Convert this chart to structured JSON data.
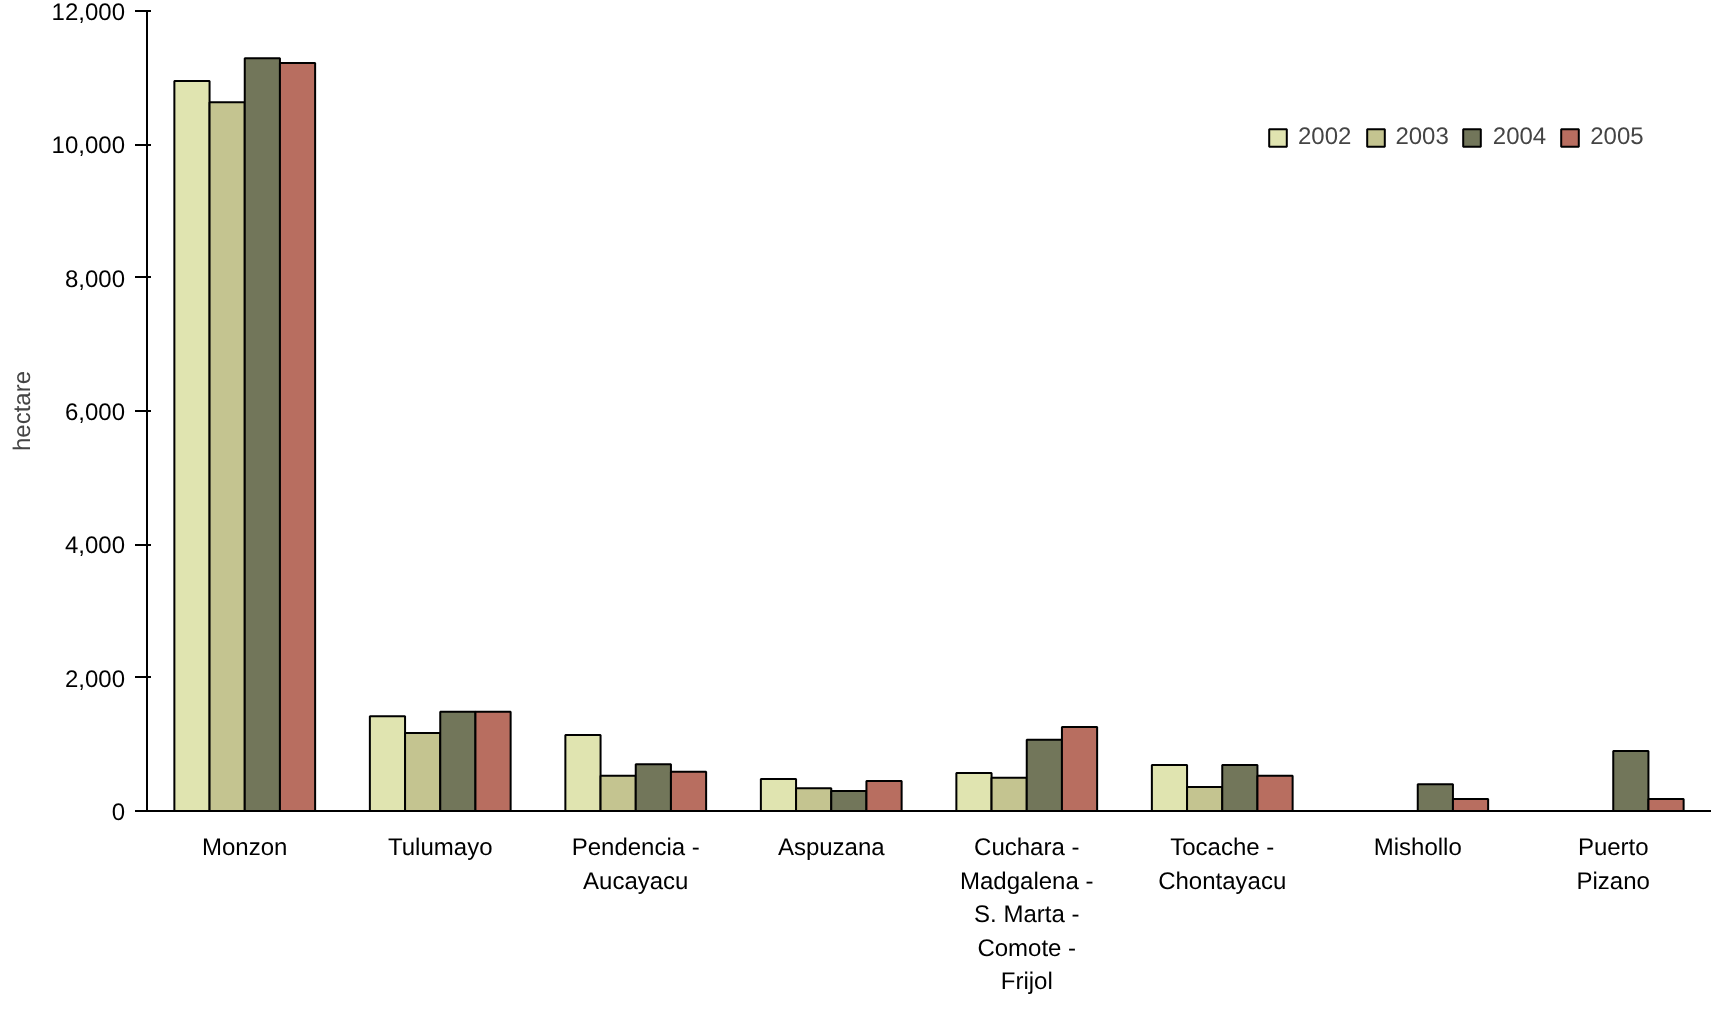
{
  "chart_data": {
    "type": "bar",
    "ylabel": "hectare",
    "categories": [
      "Monzon",
      "Tulumayo",
      "Pendencia -\nAucayacu",
      "Aspuzana",
      "Cuchara -\nMadgalena -\nS. Marta -\nComote -\nFrijol",
      "Tocache -\nChontayacu",
      "Mishollo",
      "Puerto\nPizano"
    ],
    "series": [
      {
        "name": "2002",
        "color": "#e0e4b0",
        "values": [
          10950,
          1420,
          1140,
          480,
          570,
          690,
          null,
          null
        ]
      },
      {
        "name": "2003",
        "color": "#c4c490",
        "values": [
          10630,
          1170,
          530,
          340,
          500,
          360,
          null,
          null
        ]
      },
      {
        "name": "2004",
        "color": "#72765a",
        "values": [
          11290,
          1490,
          700,
          300,
          1070,
          690,
          400,
          900
        ]
      },
      {
        "name": "2005",
        "color": "#b86e60",
        "values": [
          11220,
          1490,
          590,
          450,
          1260,
          530,
          180,
          180
        ]
      }
    ],
    "ylim": [
      0,
      12000
    ],
    "yticks": [
      {
        "value": 0,
        "label": "0"
      },
      {
        "value": 2000,
        "label": "2,000"
      },
      {
        "value": 4000,
        "label": "4,000"
      },
      {
        "value": 6000,
        "label": "6,000"
      },
      {
        "value": 8000,
        "label": "8,000"
      },
      {
        "value": 10000,
        "label": "10,000"
      },
      {
        "value": 12000,
        "label": "12,000"
      }
    ],
    "grid": false,
    "legend": "top right"
  }
}
